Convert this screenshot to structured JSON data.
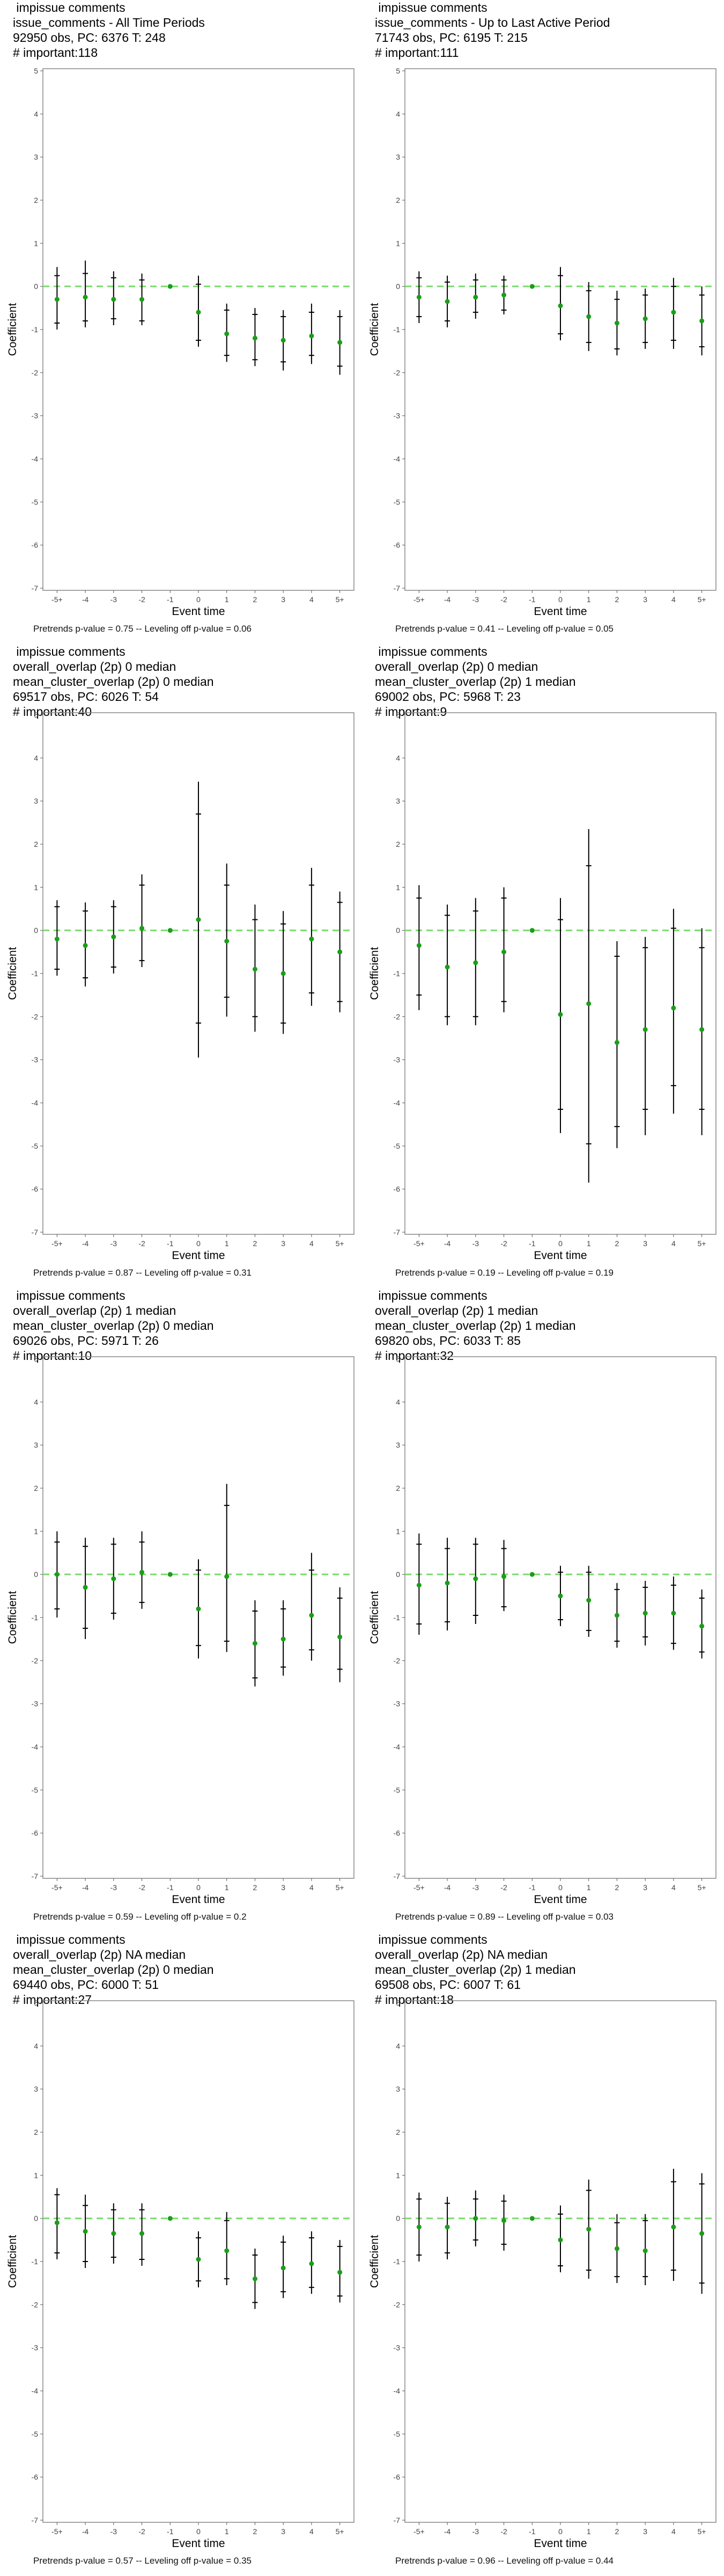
{
  "axis": {
    "ylabel": "Coefficient",
    "xlabel": "Event time",
    "ylim": [
      -7,
      5
    ],
    "yticks": [
      "5",
      "4",
      "3",
      "2",
      "1",
      "0",
      "-1",
      "-2",
      "-3",
      "-4",
      "-5",
      "-6",
      "-7"
    ],
    "xticks": [
      "-5+",
      "-4",
      "-3",
      "-2",
      "-1",
      "0",
      "1",
      "2",
      "3",
      "4",
      "5+"
    ]
  },
  "colors": {
    "point": "#1a9e1a",
    "reference_point": "#1a9e1a",
    "zero_line": "#7ddc6f",
    "error_bar": "#000000",
    "panel_border": "#888888"
  },
  "chart_data": [
    {
      "type": "scatter",
      "caption": [
        "impissue comments",
        "issue_comments - All Time Periods",
        "92950 obs, PC: 6376 T: 248",
        "# important:118"
      ],
      "footer": "Pretrends p-value = 0.75 -- Leveling off p-value = 0.06",
      "categories": [
        "-5+",
        "-4",
        "-3",
        "-2",
        "-1",
        "0",
        "1",
        "2",
        "3",
        "4",
        "5+"
      ],
      "est": [
        -0.3,
        -0.25,
        -0.3,
        -0.3,
        0,
        -0.6,
        -1.1,
        -1.2,
        -1.25,
        -1.15,
        -1.3
      ],
      "lo95": [
        -1.0,
        -0.95,
        -0.9,
        -0.9,
        0,
        -1.4,
        -1.75,
        -1.85,
        -1.95,
        -1.8,
        -2.05
      ],
      "hi95": [
        0.45,
        0.6,
        0.35,
        0.3,
        0,
        0.25,
        -0.4,
        -0.5,
        -0.55,
        -0.4,
        -0.55
      ],
      "lo90": [
        -0.85,
        -0.8,
        -0.75,
        -0.8,
        0,
        -1.25,
        -1.6,
        -1.7,
        -1.75,
        -1.6,
        -1.85
      ],
      "hi90": [
        0.25,
        0.3,
        0.2,
        0.15,
        0,
        0.05,
        -0.55,
        -0.65,
        -0.7,
        -0.6,
        -0.7
      ]
    },
    {
      "type": "scatter",
      "caption": [
        "impissue comments",
        "issue_comments - Up to Last Active Period",
        "71743 obs, PC: 6195 T: 215",
        "# important:111"
      ],
      "footer": "Pretrends p-value = 0.41 -- Leveling off p-value = 0.05",
      "categories": [
        "-5+",
        "-4",
        "-3",
        "-2",
        "-1",
        "0",
        "1",
        "2",
        "3",
        "4",
        "5+"
      ],
      "est": [
        -0.25,
        -0.35,
        -0.25,
        -0.2,
        0,
        -0.45,
        -0.7,
        -0.85,
        -0.75,
        -0.6,
        -0.8
      ],
      "lo95": [
        -0.85,
        -0.95,
        -0.75,
        -0.65,
        0,
        -1.25,
        -1.5,
        -1.6,
        -1.45,
        -1.45,
        -1.6
      ],
      "hi95": [
        0.35,
        0.25,
        0.3,
        0.25,
        0,
        0.45,
        0.1,
        -0.1,
        -0.05,
        0.2,
        0.0
      ],
      "lo90": [
        -0.7,
        -0.8,
        -0.6,
        -0.55,
        0,
        -1.1,
        -1.3,
        -1.45,
        -1.3,
        -1.25,
        -1.4
      ],
      "hi90": [
        0.2,
        0.1,
        0.15,
        0.15,
        0,
        0.25,
        -0.1,
        -0.3,
        -0.2,
        0.0,
        -0.2
      ]
    },
    {
      "type": "scatter",
      "caption": [
        "impissue comments",
        "overall_overlap (2p) 0 median",
        "mean_cluster_overlap (2p) 0 median",
        "69517 obs, PC: 6026 T: 54",
        "# important:40"
      ],
      "footer": "Pretrends p-value = 0.87 -- Leveling off p-value = 0.31",
      "categories": [
        "-5+",
        "-4",
        "-3",
        "-2",
        "-1",
        "0",
        "1",
        "2",
        "3",
        "4",
        "5+"
      ],
      "est": [
        -0.2,
        -0.35,
        -0.15,
        0.05,
        0,
        0.25,
        -0.25,
        -0.9,
        -1.0,
        -0.2,
        -0.5
      ],
      "lo95": [
        -1.05,
        -1.3,
        -1.0,
        -0.85,
        0,
        -2.95,
        -2.0,
        -2.35,
        -2.4,
        -1.75,
        -1.9
      ],
      "hi95": [
        0.7,
        0.65,
        0.7,
        1.3,
        0,
        3.45,
        1.55,
        0.6,
        0.45,
        1.45,
        0.9
      ],
      "lo90": [
        -0.9,
        -1.1,
        -0.85,
        -0.7,
        0,
        -2.15,
        -1.55,
        -2.0,
        -2.15,
        -1.45,
        -1.65
      ],
      "hi90": [
        0.55,
        0.45,
        0.55,
        1.05,
        0,
        2.7,
        1.05,
        0.25,
        0.15,
        1.05,
        0.65
      ]
    },
    {
      "type": "scatter",
      "caption": [
        "impissue comments",
        "overall_overlap (2p) 0 median",
        "mean_cluster_overlap (2p) 1 median",
        "69002 obs, PC: 5968 T: 23",
        "# important:9"
      ],
      "footer": "Pretrends p-value = 0.19 -- Leveling off p-value = 0.19",
      "categories": [
        "-5+",
        "-4",
        "-3",
        "-2",
        "-1",
        "0",
        "1",
        "2",
        "3",
        "4",
        "5+"
      ],
      "est": [
        -0.35,
        -0.85,
        -0.75,
        -0.5,
        0,
        -1.95,
        -1.7,
        -2.6,
        -2.3,
        -1.8,
        -2.3
      ],
      "lo95": [
        -1.85,
        -2.2,
        -2.2,
        -1.9,
        0,
        -4.7,
        -5.85,
        -5.05,
        -4.75,
        -4.25,
        -4.75
      ],
      "hi95": [
        1.05,
        0.6,
        0.75,
        1.0,
        0,
        0.75,
        2.35,
        -0.25,
        -0.15,
        0.5,
        0.05
      ],
      "lo90": [
        -1.5,
        -2.0,
        -2.0,
        -1.65,
        0,
        -4.15,
        -4.95,
        -4.55,
        -4.15,
        -3.6,
        -4.15
      ],
      "hi90": [
        0.75,
        0.35,
        0.45,
        0.75,
        0,
        0.25,
        1.5,
        -0.6,
        -0.4,
        0.05,
        -0.4
      ]
    },
    {
      "type": "scatter",
      "caption": [
        "impissue comments",
        "overall_overlap (2p) 1 median",
        "mean_cluster_overlap (2p) 0 median",
        "69026 obs, PC: 5971 T: 26",
        "# important:10"
      ],
      "footer": "Pretrends p-value = 0.59 -- Leveling off p-value = 0.2",
      "categories": [
        "-5+",
        "-4",
        "-3",
        "-2",
        "-1",
        "0",
        "1",
        "2",
        "3",
        "4",
        "5+"
      ],
      "est": [
        0.0,
        -0.3,
        -0.1,
        0.05,
        0,
        -0.8,
        -0.05,
        -1.6,
        -1.5,
        -0.95,
        -1.45
      ],
      "lo95": [
        -1.0,
        -1.5,
        -1.05,
        -0.8,
        0,
        -1.95,
        -1.8,
        -2.6,
        -2.35,
        -2.0,
        -2.5
      ],
      "hi95": [
        1.0,
        0.85,
        0.85,
        1.0,
        0,
        0.35,
        2.1,
        -0.6,
        -0.6,
        0.5,
        -0.3
      ],
      "lo90": [
        -0.8,
        -1.25,
        -0.9,
        -0.65,
        0,
        -1.65,
        -1.55,
        -2.4,
        -2.15,
        -1.75,
        -2.2
      ],
      "hi90": [
        0.75,
        0.65,
        0.7,
        0.75,
        0,
        0.1,
        1.6,
        -0.85,
        -0.8,
        0.1,
        -0.55
      ]
    },
    {
      "type": "scatter",
      "caption": [
        "impissue comments",
        "overall_overlap (2p) 1 median",
        "mean_cluster_overlap (2p) 1 median",
        "69820 obs, PC: 6033 T: 85",
        "# important:32"
      ],
      "footer": "Pretrends p-value = 0.89 -- Leveling off p-value = 0.03",
      "categories": [
        "-5+",
        "-4",
        "-3",
        "-2",
        "-1",
        "0",
        "1",
        "2",
        "3",
        "4",
        "5+"
      ],
      "est": [
        -0.25,
        -0.2,
        -0.1,
        -0.05,
        0,
        -0.5,
        -0.6,
        -0.95,
        -0.9,
        -0.9,
        -1.2
      ],
      "lo95": [
        -1.4,
        -1.3,
        -1.15,
        -0.85,
        0,
        -1.2,
        -1.45,
        -1.7,
        -1.65,
        -1.75,
        -1.95
      ],
      "hi95": [
        0.95,
        0.85,
        0.85,
        0.8,
        0,
        0.2,
        0.2,
        -0.2,
        -0.15,
        -0.05,
        -0.35
      ],
      "lo90": [
        -1.15,
        -1.1,
        -0.95,
        -0.75,
        0,
        -1.05,
        -1.3,
        -1.55,
        -1.45,
        -1.6,
        -1.8
      ],
      "hi90": [
        0.7,
        0.6,
        0.7,
        0.6,
        0,
        0.05,
        0.05,
        -0.35,
        -0.3,
        -0.25,
        -0.55
      ]
    },
    {
      "type": "scatter",
      "caption": [
        "impissue comments",
        "overall_overlap (2p) NA median",
        "mean_cluster_overlap (2p) 0 median",
        "69440 obs, PC: 6000 T: 51",
        "# important:27"
      ],
      "footer": "Pretrends p-value = 0.57 -- Leveling off p-value = 0.35",
      "categories": [
        "-5+",
        "-4",
        "-3",
        "-2",
        "-1",
        "0",
        "1",
        "2",
        "3",
        "4",
        "5+"
      ],
      "est": [
        -0.1,
        -0.3,
        -0.35,
        -0.35,
        0,
        -0.95,
        -0.75,
        -1.4,
        -1.15,
        -1.05,
        -1.25
      ],
      "lo95": [
        -0.95,
        -1.15,
        -1.05,
        -1.1,
        0,
        -1.6,
        -1.55,
        -2.1,
        -1.85,
        -1.75,
        -1.95
      ],
      "hi95": [
        0.7,
        0.55,
        0.35,
        0.35,
        0,
        -0.3,
        0.15,
        -0.7,
        -0.4,
        -0.3,
        -0.5
      ],
      "lo90": [
        -0.8,
        -1.0,
        -0.9,
        -0.95,
        0,
        -1.45,
        -1.4,
        -1.95,
        -1.7,
        -1.6,
        -1.8
      ],
      "hi90": [
        0.55,
        0.3,
        0.2,
        0.2,
        0,
        -0.45,
        -0.05,
        -0.85,
        -0.55,
        -0.45,
        -0.65
      ]
    },
    {
      "type": "scatter",
      "caption": [
        "impissue comments",
        "overall_overlap (2p) NA median",
        "mean_cluster_overlap (2p) 1 median",
        "69508 obs, PC: 6007 T: 61",
        "# important:18"
      ],
      "footer": "Pretrends p-value = 0.96 -- Leveling off p-value = 0.44",
      "categories": [
        "-5+",
        "-4",
        "-3",
        "-2",
        "-1",
        "0",
        "1",
        "2",
        "3",
        "4",
        "5+"
      ],
      "est": [
        -0.2,
        -0.2,
        0.0,
        -0.05,
        0,
        -0.5,
        -0.25,
        -0.7,
        -0.75,
        -0.2,
        -0.35
      ],
      "lo95": [
        -1.0,
        -0.95,
        -0.65,
        -0.75,
        0,
        -1.25,
        -1.4,
        -1.5,
        -1.55,
        -1.45,
        -1.75
      ],
      "hi95": [
        0.6,
        0.5,
        0.65,
        0.55,
        0,
        0.3,
        0.9,
        0.1,
        0.1,
        1.15,
        1.05
      ],
      "lo90": [
        -0.85,
        -0.8,
        -0.5,
        -0.6,
        0,
        -1.1,
        -1.2,
        -1.35,
        -1.35,
        -1.2,
        -1.5
      ],
      "hi90": [
        0.45,
        0.35,
        0.45,
        0.4,
        0,
        0.1,
        0.65,
        -0.1,
        -0.05,
        0.85,
        0.8
      ]
    }
  ]
}
